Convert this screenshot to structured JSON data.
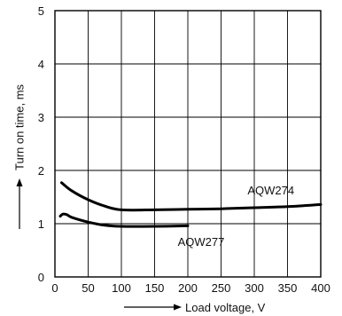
{
  "chart_data": {
    "type": "line",
    "title": "",
    "xlabel": "Load voltage, V",
    "ylabel": "Turn on time, ms",
    "xlim": [
      0,
      400
    ],
    "ylim": [
      0,
      5
    ],
    "x_ticks": [
      0,
      50,
      100,
      150,
      200,
      250,
      300,
      350,
      400
    ],
    "y_ticks": [
      0,
      1,
      2,
      3,
      4,
      5
    ],
    "grid": true,
    "legend": "none",
    "series": [
      {
        "name": "AQW274",
        "x": [
          10,
          25,
          50,
          75,
          100,
          150,
          200,
          250,
          300,
          350,
          400
        ],
        "y": [
          1.77,
          1.62,
          1.45,
          1.33,
          1.26,
          1.26,
          1.27,
          1.28,
          1.3,
          1.32,
          1.36
        ],
        "color": "#000000"
      },
      {
        "name": "AQW277",
        "x": [
          8,
          12,
          18,
          25,
          50,
          75,
          100,
          150,
          200
        ],
        "y": [
          1.14,
          1.18,
          1.17,
          1.12,
          1.03,
          0.97,
          0.95,
          0.95,
          0.96
        ],
        "color": "#000000"
      }
    ]
  }
}
